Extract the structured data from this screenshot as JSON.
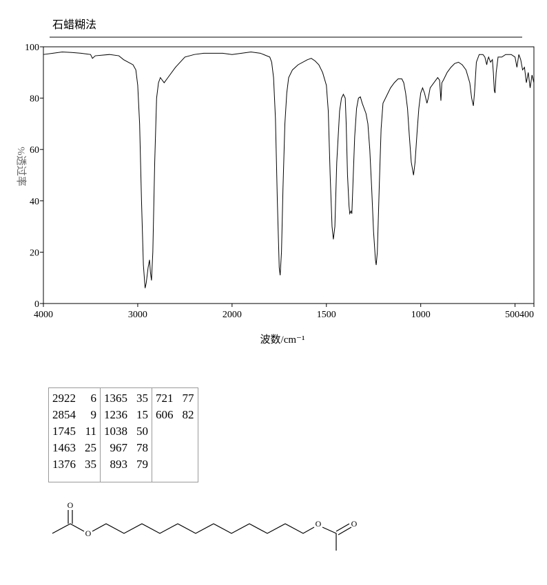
{
  "chart_data": {
    "type": "line",
    "title": "石蜡糊法",
    "xlabel": "波数/cm⁻¹",
    "ylabel": "%透过率",
    "xlim": [
      4000,
      400
    ],
    "xscale": {
      "break": 2000,
      "factor": 2
    },
    "xticks": [
      4000,
      3000,
      2000,
      1500,
      1000,
      500,
      400
    ],
    "ylim": [
      0,
      100
    ],
    "yticks": [
      0,
      20,
      40,
      60,
      80,
      100
    ],
    "color": "#000000",
    "x": [
      4000,
      3900,
      3800,
      3700,
      3600,
      3500,
      3480,
      3450,
      3300,
      3200,
      3150,
      3100,
      3050,
      3020,
      3000,
      2980,
      2960,
      2940,
      2922,
      2910,
      2890,
      2875,
      2865,
      2854,
      2840,
      2820,
      2800,
      2780,
      2760,
      2740,
      2720,
      2680,
      2600,
      2500,
      2400,
      2300,
      2200,
      2100,
      2000,
      1950,
      1900,
      1850,
      1800,
      1790,
      1780,
      1770,
      1760,
      1750,
      1745,
      1738,
      1730,
      1720,
      1710,
      1700,
      1680,
      1650,
      1600,
      1580,
      1560,
      1540,
      1520,
      1500,
      1490,
      1480,
      1470,
      1463,
      1455,
      1445,
      1430,
      1420,
      1410,
      1400,
      1395,
      1388,
      1380,
      1376,
      1370,
      1365,
      1360,
      1350,
      1340,
      1330,
      1320,
      1310,
      1290,
      1280,
      1270,
      1260,
      1250,
      1240,
      1236,
      1230,
      1220,
      1210,
      1200,
      1180,
      1160,
      1140,
      1120,
      1100,
      1090,
      1080,
      1070,
      1060,
      1050,
      1038,
      1030,
      1020,
      1010,
      1000,
      990,
      980,
      970,
      967,
      960,
      950,
      930,
      910,
      900,
      893,
      888,
      880,
      860,
      840,
      820,
      800,
      780,
      760,
      740,
      730,
      721,
      715,
      705,
      690,
      670,
      660,
      650,
      645,
      640,
      630,
      620,
      615,
      610,
      606,
      600,
      590,
      570,
      550,
      520,
      500,
      490,
      480,
      470,
      460,
      450,
      440,
      430,
      420,
      410,
      400
    ],
    "values": [
      97,
      97.5,
      98,
      97.8,
      97.5,
      97,
      95.5,
      96.5,
      97,
      96.5,
      95,
      94,
      93,
      91,
      85,
      70,
      40,
      15,
      6,
      8,
      14,
      17,
      12,
      9,
      20,
      55,
      80,
      86,
      88,
      87,
      86,
      88,
      92,
      96,
      97,
      97.5,
      97.5,
      97.5,
      97,
      97.5,
      98,
      97.5,
      96,
      94,
      88,
      72,
      40,
      14,
      11,
      20,
      45,
      70,
      82,
      88,
      91,
      93,
      95,
      95.5,
      94.5,
      93,
      90,
      85,
      75,
      50,
      30,
      25,
      30,
      55,
      75,
      80,
      81.5,
      80,
      70,
      50,
      38,
      35,
      36,
      35,
      45,
      65,
      76,
      80,
      80.5,
      78,
      74,
      70,
      60,
      45,
      28,
      17,
      15,
      20,
      45,
      68,
      78,
      81,
      84,
      86,
      87.5,
      87.5,
      86,
      82,
      76,
      65,
      55,
      50,
      55,
      66,
      76,
      82,
      84,
      82,
      79,
      78,
      80,
      84,
      86,
      88,
      87,
      79,
      86,
      87,
      90,
      92,
      93.5,
      94,
      93,
      91,
      86,
      80,
      77,
      82,
      94,
      97,
      97,
      96,
      93,
      95,
      96,
      94,
      95,
      90,
      83,
      82,
      90,
      96,
      96,
      97,
      97,
      96,
      92,
      97,
      95,
      91,
      92,
      86,
      90,
      84,
      89,
      86
    ]
  },
  "peak_table": {
    "columns": [
      [
        [
          "2922",
          "6"
        ],
        [
          "2854",
          "9"
        ],
        [
          "1745",
          "11"
        ],
        [
          "1463",
          "25"
        ],
        [
          "1376",
          "35"
        ]
      ],
      [
        [
          "1365",
          "35"
        ],
        [
          "1236",
          "15"
        ],
        [
          "1038",
          "50"
        ],
        [
          "967",
          "78"
        ],
        [
          "893",
          "79"
        ]
      ],
      [
        [
          "721",
          "77"
        ],
        [
          "606",
          "82"
        ]
      ]
    ]
  },
  "structure": {
    "atoms": [
      "O",
      "O",
      "O",
      "O"
    ]
  }
}
